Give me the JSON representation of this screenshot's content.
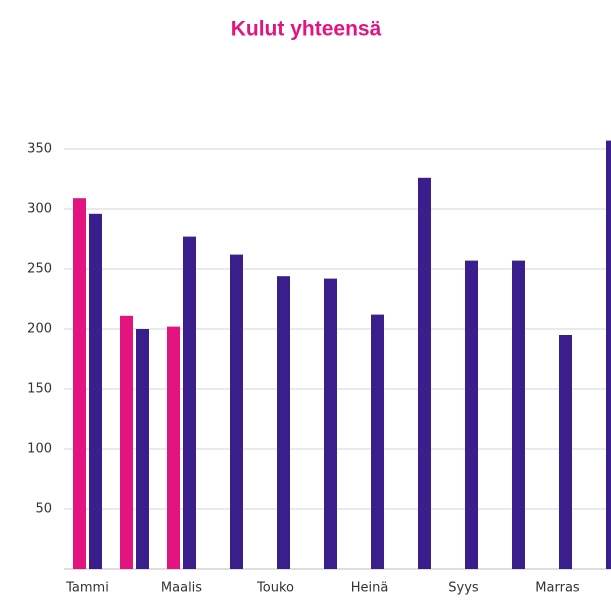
{
  "chart_data": {
    "type": "bar",
    "title": "Kulut yhteensä",
    "categories": [
      "Tammi",
      null,
      "Maalis",
      null,
      "Touko",
      null,
      "Heinä",
      null,
      "Syys",
      null,
      "Marras",
      null
    ],
    "series": [
      {
        "color": "#e3137f",
        "values": [
          309,
          211,
          202,
          null,
          null,
          null,
          null,
          null,
          null,
          null,
          null,
          null
        ]
      },
      {
        "color": "#3a1e8c",
        "values": [
          296,
          200,
          277,
          262,
          244,
          242,
          212,
          326,
          257,
          257,
          195,
          357
        ]
      }
    ],
    "ylim": [
      0,
      400
    ],
    "yticks": [
      50,
      100,
      150,
      200,
      250,
      300,
      350
    ],
    "grid": true
  }
}
